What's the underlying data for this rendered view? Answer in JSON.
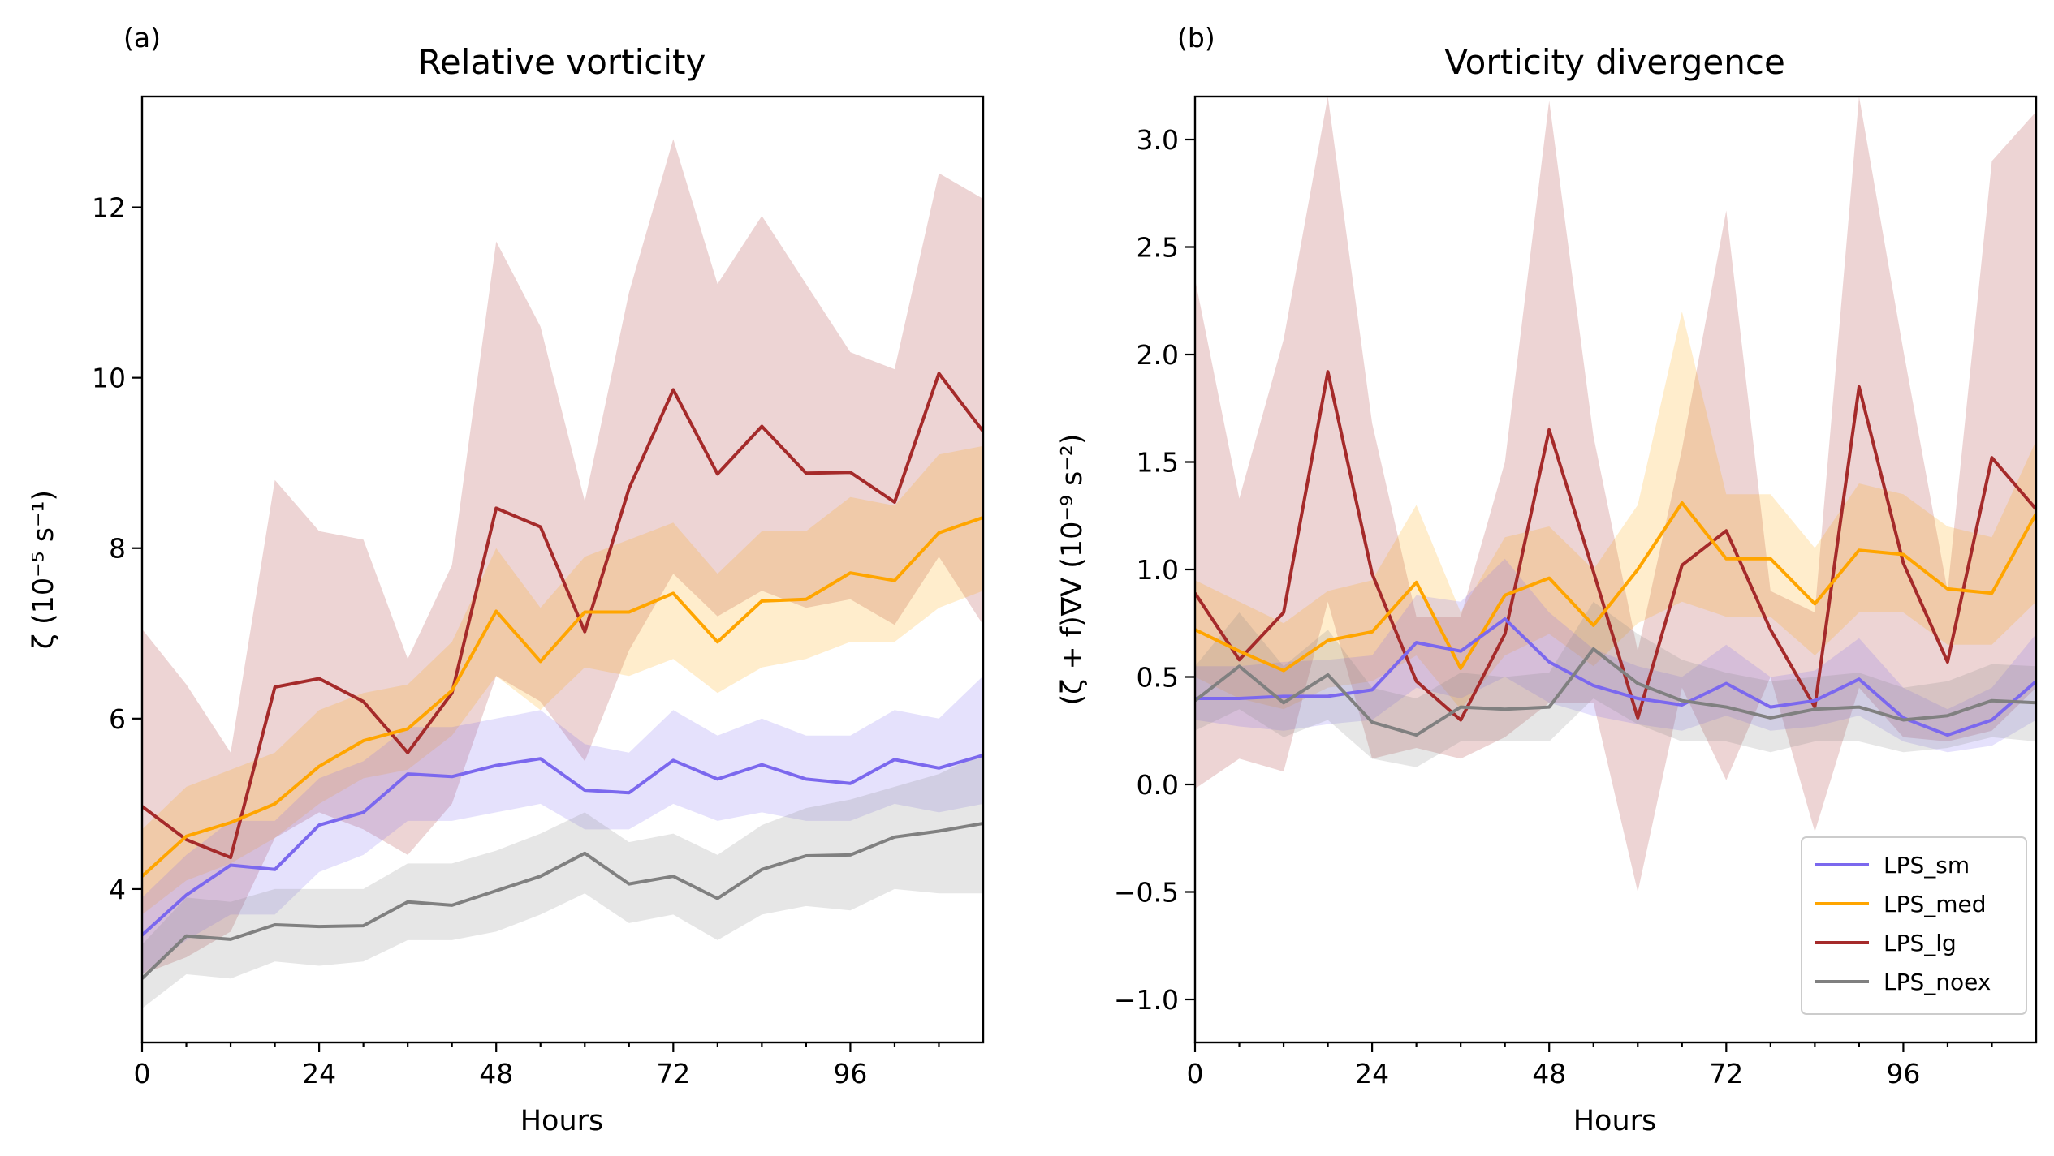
{
  "colors": {
    "LPS_sm": "#7b68ee",
    "LPS_med": "#ffa500",
    "LPS_lg": "#a52a2a",
    "LPS_noex": "#808080"
  },
  "chart_data": [
    {
      "type": "line",
      "panel_label": "(a)",
      "title": "Relative vorticity",
      "xlabel": "Hours",
      "ylabel": "ζ (10⁻⁵ s⁻¹)",
      "xlim": [
        0,
        114
      ],
      "ylim": [
        2.2,
        13.3
      ],
      "xticks": [
        0,
        24,
        48,
        72,
        96
      ],
      "xticklabels": [
        "0",
        "24",
        "48",
        "72",
        "96"
      ],
      "xminor": [
        6,
        12,
        18,
        30,
        36,
        42,
        54,
        60,
        66,
        78,
        84,
        90,
        102,
        108
      ],
      "yticks": [
        4,
        6,
        8,
        10,
        12
      ],
      "yticklabels": [
        "4",
        "6",
        "8",
        "10",
        "12"
      ],
      "x": [
        0,
        6,
        12,
        18,
        24,
        30,
        36,
        42,
        48,
        54,
        60,
        66,
        72,
        78,
        84,
        90,
        96,
        102,
        108,
        114
      ],
      "series": [
        {
          "name": "LPS_lg",
          "values": [
            4.97,
            4.58,
            4.37,
            6.37,
            6.47,
            6.2,
            5.6,
            6.3,
            8.47,
            8.25,
            7.02,
            8.7,
            9.86,
            8.87,
            9.43,
            8.88,
            8.89,
            8.54,
            10.05,
            9.37
          ],
          "lower": [
            3.0,
            3.2,
            3.5,
            4.6,
            4.9,
            4.7,
            4.4,
            5.0,
            6.5,
            6.2,
            5.5,
            6.8,
            7.7,
            7.2,
            7.5,
            7.3,
            7.4,
            7.1,
            7.9,
            7.1
          ],
          "upper": [
            7.05,
            6.4,
            5.6,
            8.8,
            8.2,
            8.1,
            6.7,
            7.8,
            11.6,
            10.6,
            8.55,
            11.0,
            12.8,
            11.1,
            11.9,
            11.1,
            10.3,
            10.1,
            12.4,
            12.1
          ]
        },
        {
          "name": "LPS_med",
          "values": [
            4.15,
            4.62,
            4.78,
            5.0,
            5.44,
            5.74,
            5.88,
            6.33,
            7.26,
            6.67,
            7.25,
            7.25,
            7.47,
            6.9,
            7.38,
            7.4,
            7.71,
            7.62,
            8.18,
            8.36
          ],
          "lower": [
            3.7,
            4.1,
            4.3,
            4.6,
            5.0,
            5.3,
            5.4,
            5.8,
            6.5,
            6.1,
            6.6,
            6.5,
            6.7,
            6.3,
            6.6,
            6.7,
            6.9,
            6.9,
            7.3,
            7.5
          ],
          "upper": [
            4.7,
            5.2,
            5.4,
            5.6,
            6.1,
            6.3,
            6.4,
            6.9,
            8.0,
            7.3,
            7.9,
            8.1,
            8.3,
            7.7,
            8.2,
            8.2,
            8.6,
            8.5,
            9.1,
            9.2
          ]
        },
        {
          "name": "LPS_sm",
          "values": [
            3.46,
            3.93,
            4.28,
            4.23,
            4.75,
            4.9,
            5.35,
            5.32,
            5.45,
            5.53,
            5.16,
            5.13,
            5.51,
            5.29,
            5.46,
            5.29,
            5.24,
            5.52,
            5.42,
            5.57
          ],
          "lower": [
            3.0,
            3.4,
            3.7,
            3.7,
            4.2,
            4.4,
            4.8,
            4.8,
            4.9,
            5.0,
            4.7,
            4.7,
            5.0,
            4.8,
            4.9,
            4.8,
            4.8,
            5.0,
            4.9,
            5.0
          ],
          "upper": [
            3.9,
            4.4,
            4.8,
            4.8,
            5.3,
            5.5,
            5.9,
            5.9,
            6.0,
            6.1,
            5.7,
            5.6,
            6.1,
            5.8,
            6.0,
            5.8,
            5.8,
            6.1,
            6.0,
            6.5
          ]
        },
        {
          "name": "LPS_noex",
          "values": [
            2.95,
            3.45,
            3.41,
            3.58,
            3.56,
            3.57,
            3.85,
            3.81,
            3.98,
            4.15,
            4.42,
            4.06,
            4.15,
            3.89,
            4.23,
            4.39,
            4.4,
            4.61,
            4.68,
            4.77
          ],
          "lower": [
            2.6,
            3.0,
            2.95,
            3.15,
            3.1,
            3.15,
            3.4,
            3.4,
            3.5,
            3.7,
            3.95,
            3.6,
            3.7,
            3.4,
            3.7,
            3.8,
            3.75,
            4.0,
            3.95,
            3.95
          ],
          "upper": [
            3.35,
            3.9,
            3.85,
            4.0,
            4.0,
            4.0,
            4.3,
            4.3,
            4.45,
            4.65,
            4.9,
            4.55,
            4.65,
            4.4,
            4.75,
            4.95,
            5.05,
            5.2,
            5.35,
            5.6
          ]
        }
      ]
    },
    {
      "type": "line",
      "panel_label": "(b)",
      "title": "Vorticity divergence",
      "xlabel": "Hours",
      "ylabel": "(ζ + f)∇V (10⁻⁹ s⁻²)",
      "xlim": [
        0,
        114
      ],
      "ylim": [
        -1.2,
        3.2
      ],
      "xticks": [
        0,
        24,
        48,
        72,
        96
      ],
      "xticklabels": [
        "0",
        "24",
        "48",
        "72",
        "96"
      ],
      "xminor": [
        6,
        12,
        18,
        30,
        36,
        42,
        54,
        60,
        66,
        78,
        84,
        90,
        102,
        108
      ],
      "yticks": [
        -1.0,
        -0.5,
        0.0,
        0.5,
        1.0,
        1.5,
        2.0,
        2.5,
        3.0
      ],
      "yticklabels": [
        "−1.0",
        "−0.5",
        "0.0",
        "0.5",
        "1.0",
        "1.5",
        "2.0",
        "2.5",
        "3.0"
      ],
      "legend": {
        "position": "lower-right",
        "entries": [
          "LPS_sm",
          "LPS_med",
          "LPS_lg",
          "LPS_noex"
        ]
      },
      "x": [
        0,
        6,
        12,
        18,
        24,
        30,
        36,
        42,
        48,
        54,
        60,
        66,
        72,
        78,
        84,
        90,
        96,
        102,
        108,
        114
      ],
      "series": [
        {
          "name": "LPS_lg",
          "values": [
            0.89,
            0.58,
            0.8,
            1.92,
            0.98,
            0.48,
            0.3,
            0.7,
            1.65,
            0.99,
            0.31,
            1.02,
            1.18,
            0.72,
            0.36,
            1.85,
            1.03,
            0.57,
            1.52,
            1.28
          ],
          "lower": [
            -0.02,
            0.12,
            0.06,
            0.85,
            0.12,
            0.17,
            0.12,
            0.22,
            0.38,
            0.38,
            -0.5,
            0.45,
            0.02,
            0.5,
            -0.22,
            0.45,
            0.22,
            0.2,
            0.25,
            0.45
          ],
          "upper": [
            2.35,
            1.33,
            2.07,
            3.2,
            1.68,
            0.78,
            0.78,
            1.5,
            3.18,
            1.62,
            0.62,
            1.56,
            2.67,
            0.9,
            0.8,
            3.2,
            2.02,
            0.9,
            2.9,
            3.13
          ]
        },
        {
          "name": "LPS_med",
          "values": [
            0.72,
            0.62,
            0.53,
            0.67,
            0.71,
            0.94,
            0.54,
            0.88,
            0.96,
            0.74,
            1.0,
            1.31,
            1.05,
            1.05,
            0.84,
            1.09,
            1.07,
            0.91,
            0.89,
            1.26
          ],
          "lower": [
            0.5,
            0.4,
            0.35,
            0.45,
            0.48,
            0.6,
            0.35,
            0.6,
            0.7,
            0.55,
            0.75,
            0.85,
            0.78,
            0.78,
            0.6,
            0.8,
            0.8,
            0.65,
            0.65,
            0.85
          ],
          "upper": [
            0.95,
            0.85,
            0.75,
            0.9,
            0.95,
            1.3,
            0.8,
            1.15,
            1.2,
            1.0,
            1.3,
            2.2,
            1.35,
            1.35,
            1.1,
            1.4,
            1.35,
            1.2,
            1.15,
            1.6
          ]
        },
        {
          "name": "LPS_sm",
          "values": [
            0.4,
            0.4,
            0.41,
            0.41,
            0.44,
            0.66,
            0.62,
            0.77,
            0.57,
            0.46,
            0.4,
            0.37,
            0.47,
            0.36,
            0.39,
            0.49,
            0.31,
            0.23,
            0.3,
            0.48
          ],
          "lower": [
            0.3,
            0.27,
            0.25,
            0.28,
            0.3,
            0.45,
            0.4,
            0.5,
            0.38,
            0.32,
            0.28,
            0.25,
            0.32,
            0.25,
            0.27,
            0.32,
            0.2,
            0.15,
            0.18,
            0.3
          ],
          "upper": [
            0.55,
            0.55,
            0.57,
            0.58,
            0.6,
            0.88,
            0.85,
            1.05,
            0.8,
            0.63,
            0.55,
            0.5,
            0.65,
            0.5,
            0.53,
            0.68,
            0.45,
            0.35,
            0.45,
            0.7
          ]
        },
        {
          "name": "LPS_noex",
          "values": [
            0.39,
            0.55,
            0.38,
            0.51,
            0.29,
            0.23,
            0.36,
            0.35,
            0.36,
            0.63,
            0.47,
            0.39,
            0.36,
            0.31,
            0.35,
            0.36,
            0.3,
            0.32,
            0.39,
            0.38
          ],
          "lower": [
            0.25,
            0.35,
            0.22,
            0.3,
            0.12,
            0.08,
            0.2,
            0.2,
            0.2,
            0.4,
            0.28,
            0.2,
            0.2,
            0.15,
            0.2,
            0.2,
            0.15,
            0.17,
            0.22,
            0.2
          ],
          "upper": [
            0.55,
            0.8,
            0.55,
            0.72,
            0.45,
            0.4,
            0.52,
            0.5,
            0.52,
            0.85,
            0.7,
            0.58,
            0.52,
            0.48,
            0.5,
            0.52,
            0.45,
            0.48,
            0.56,
            0.55
          ]
        }
      ]
    }
  ]
}
